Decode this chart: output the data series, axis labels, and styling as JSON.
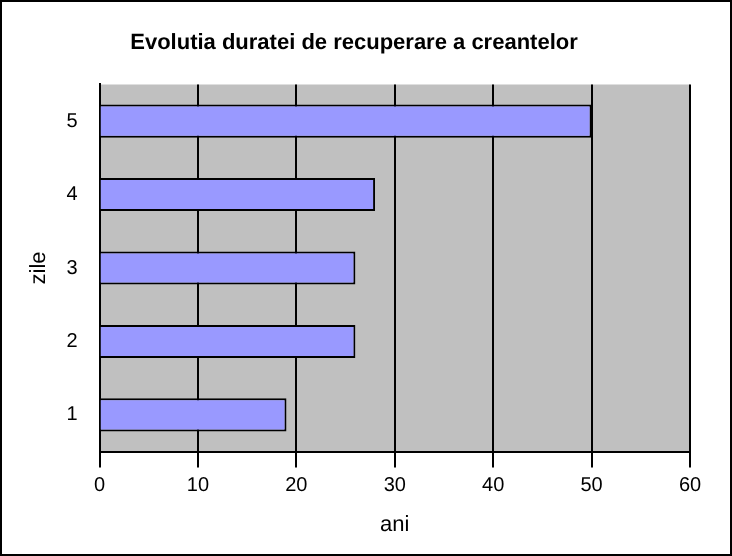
{
  "chart_data": {
    "type": "bar",
    "orientation": "horizontal",
    "title": "Evolutia duratei de recuperare a creantelor",
    "xlabel": "ani",
    "ylabel": "zile",
    "categories": [
      "5",
      "4",
      "3",
      "2",
      "1"
    ],
    "values": [
      50,
      28,
      26,
      26,
      19
    ],
    "color": "#9999ff",
    "xlim": [
      0,
      60
    ],
    "xticks": [
      0,
      10,
      20,
      30,
      40,
      50,
      60
    ],
    "grid": "x",
    "legend": false
  }
}
